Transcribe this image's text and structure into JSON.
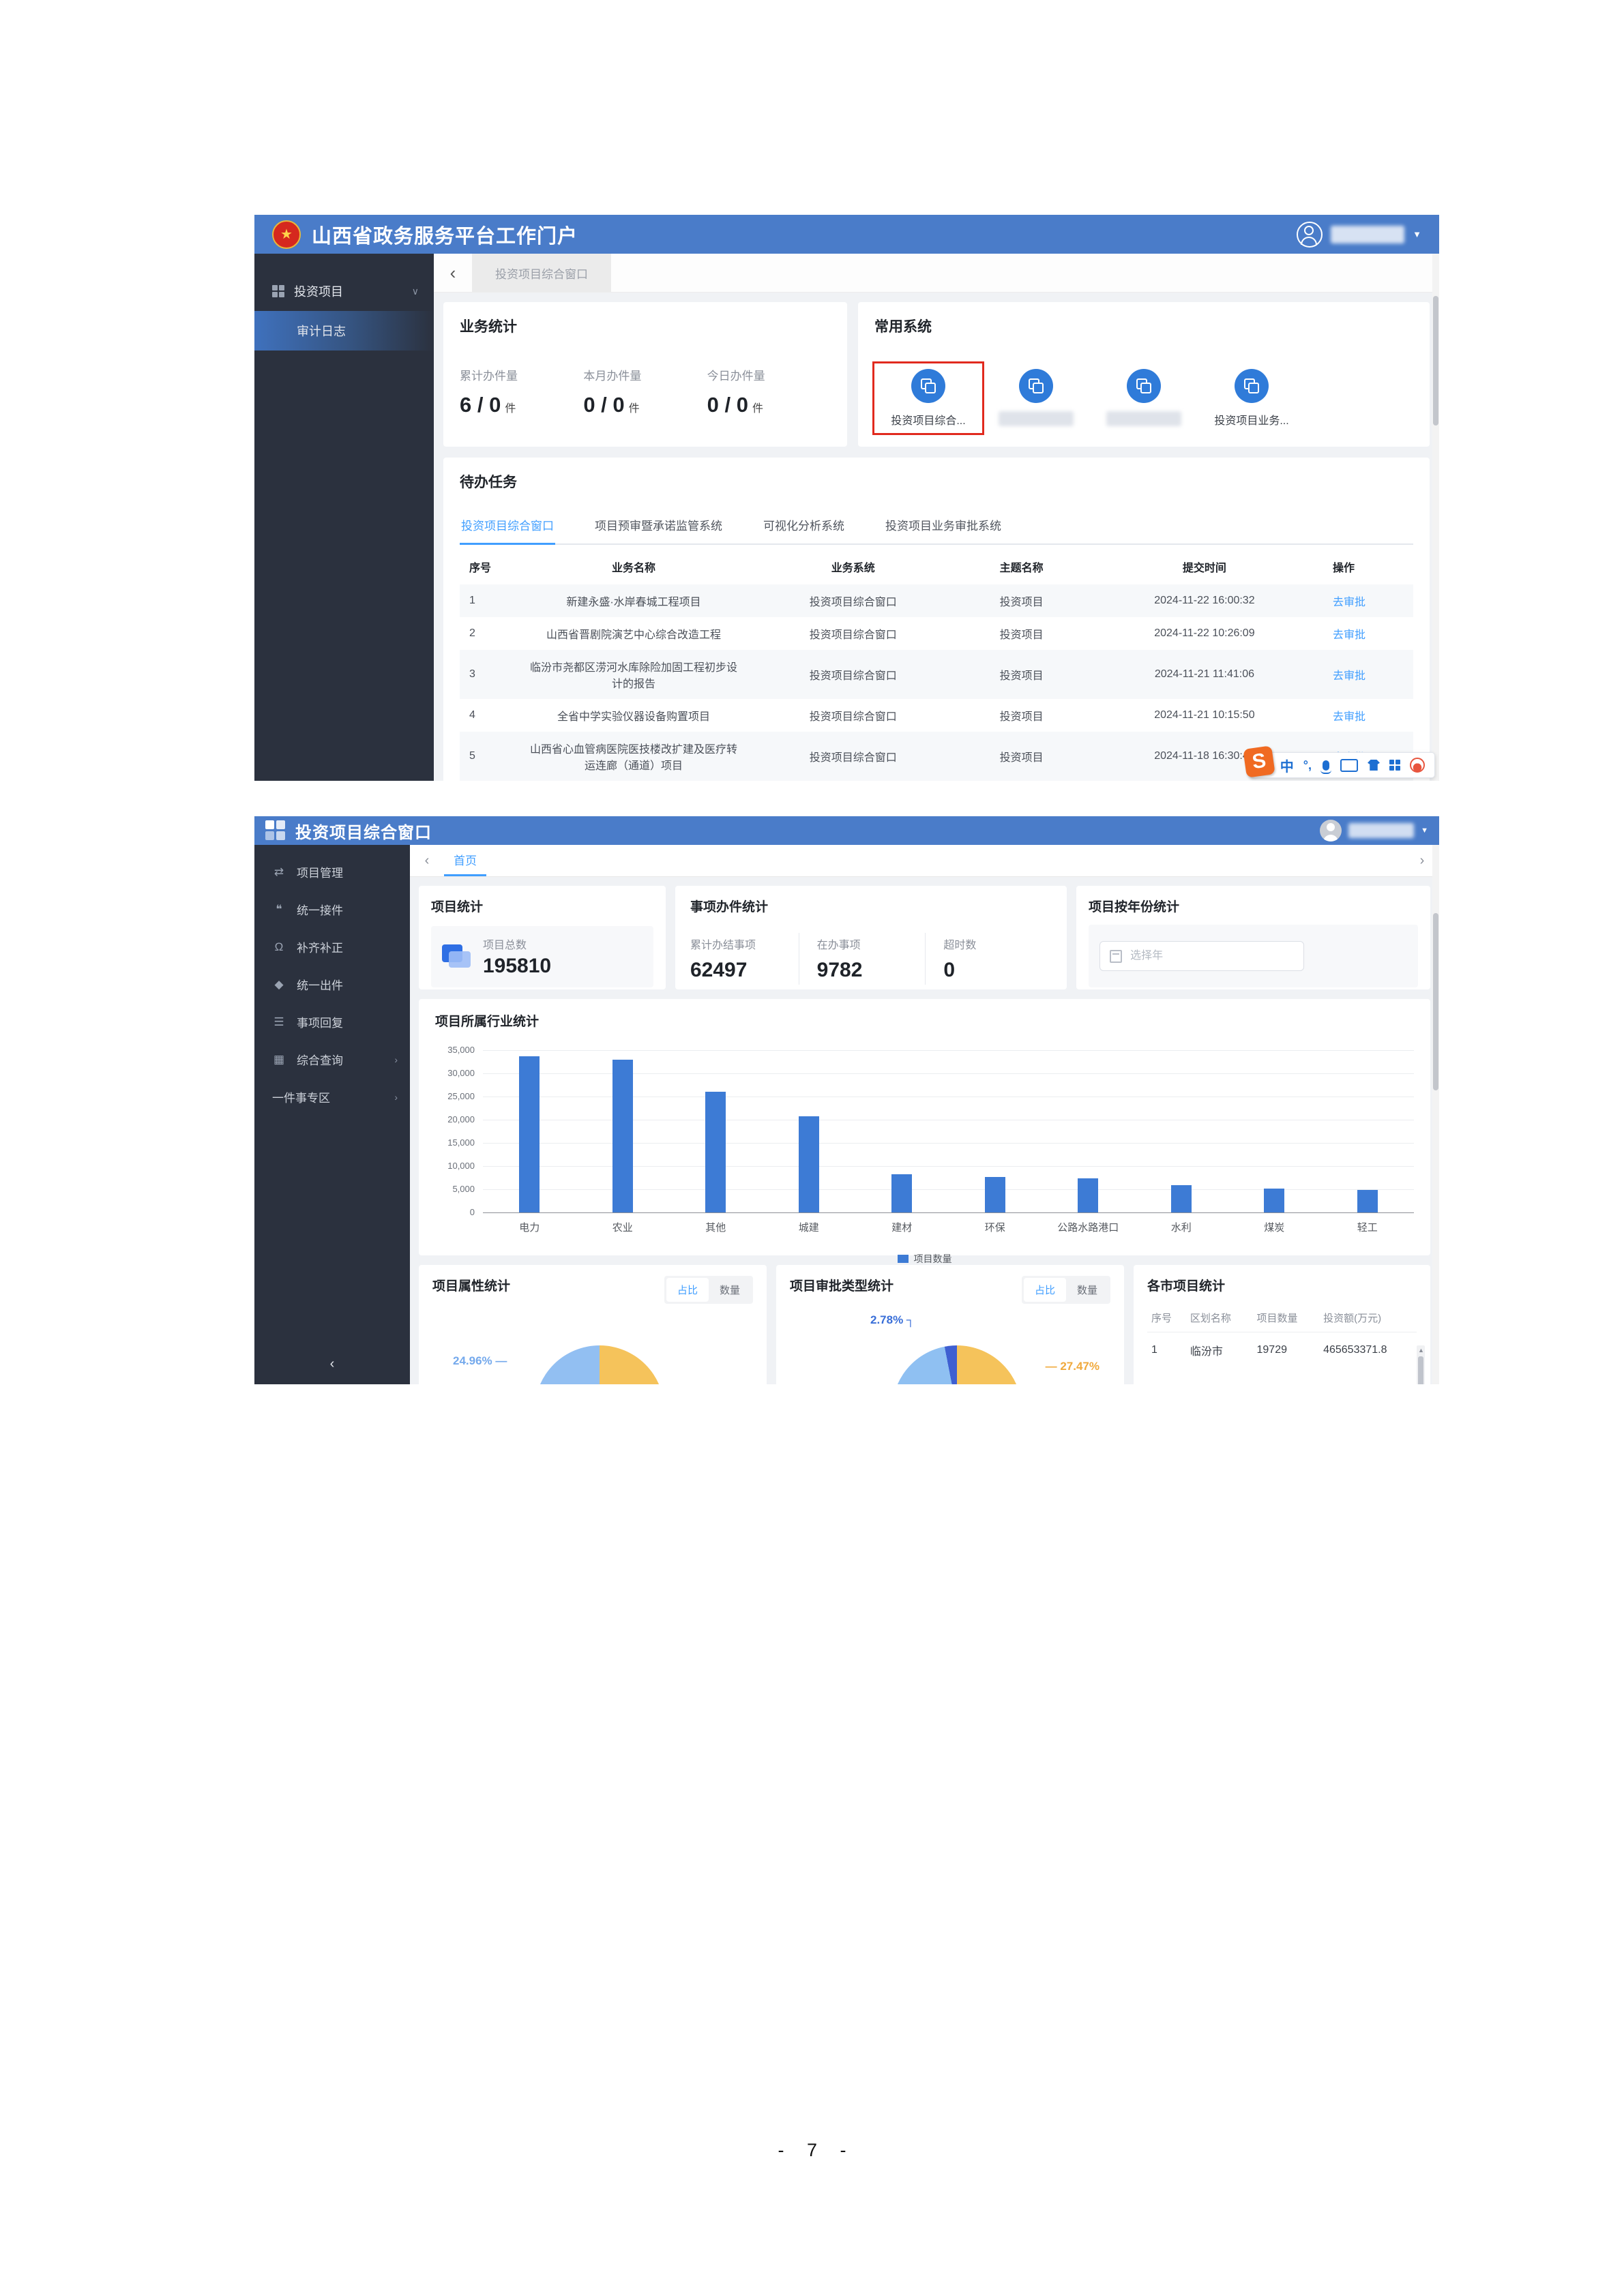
{
  "doc": {
    "page_number": "- 7 -"
  },
  "portal": {
    "header": {
      "title": "山西省政务服务平台工作门户"
    },
    "user": {
      "caret": "▼"
    },
    "tabbar": {
      "back": "‹",
      "tab": "投资项目综合窗口"
    },
    "sidebar": {
      "parent": "投资项目",
      "parent_chevron": "∨",
      "child": "审计日志"
    },
    "business": {
      "title": "业务统计",
      "metrics": [
        {
          "label": "累计办件量",
          "value": "6 / 0",
          "unit": "件"
        },
        {
          "label": "本月办件量",
          "value": "0 / 0",
          "unit": "件"
        },
        {
          "label": "今日办件量",
          "value": "0 / 0",
          "unit": "件"
        }
      ]
    },
    "systems": {
      "title": "常用系统",
      "items": [
        {
          "label": "投资项目综合...",
          "redacted": false,
          "highlighted": true
        },
        {
          "label": "",
          "redacted": true,
          "highlighted": false
        },
        {
          "label": "",
          "redacted": true,
          "highlighted": false
        },
        {
          "label": "投资项目业务...",
          "redacted": false,
          "highlighted": false
        }
      ]
    },
    "todo": {
      "title": "待办任务",
      "tabs": [
        {
          "label": "投资项目综合窗口",
          "active": true
        },
        {
          "label": "项目预审暨承诺监管系统",
          "active": false
        },
        {
          "label": "可视化分析系统",
          "active": false
        },
        {
          "label": "投资项目业务审批系统",
          "active": false
        }
      ],
      "columns": [
        "序号",
        "业务名称",
        "业务系统",
        "主题名称",
        "提交时间",
        "操作"
      ],
      "action_label": "去审批",
      "rows": [
        {
          "no": "1",
          "name": "新建永盛·水岸春城工程项目",
          "system": "投资项目综合窗口",
          "topic": "投资项目",
          "time": "2024-11-22 16:00:32"
        },
        {
          "no": "2",
          "name": "山西省晋剧院演艺中心综合改造工程",
          "system": "投资项目综合窗口",
          "topic": "投资项目",
          "time": "2024-11-22 10:26:09"
        },
        {
          "no": "3",
          "name": "临汾市尧都区涝河水库除险加固工程初步设计的报告",
          "system": "投资项目综合窗口",
          "topic": "投资项目",
          "time": "2024-11-21 11:41:06"
        },
        {
          "no": "4",
          "name": "全省中学实验仪器设备购置项目",
          "system": "投资项目综合窗口",
          "topic": "投资项目",
          "time": "2024-11-21 10:15:50"
        },
        {
          "no": "5",
          "name": "山西省心血管病医院医技楼改扩建及医疗转运连廊（通道）项目",
          "system": "投资项目综合窗口",
          "topic": "投资项目",
          "time": "2024-11-18 16:30:49"
        }
      ]
    },
    "ime": {
      "mode_label": "中",
      "punct_label": "°,"
    }
  },
  "console": {
    "header": {
      "title": "投资项目综合窗口"
    },
    "user": {
      "caret": "▼"
    },
    "tabbar": {
      "back": "‹",
      "tab": "首页",
      "forward": "›"
    },
    "sidebar": {
      "items": [
        {
          "label": "项目管理",
          "icon": "swap-icon",
          "glyph": "⇄",
          "arrow": false
        },
        {
          "label": "统一接件",
          "icon": "chat-icon",
          "glyph": "❝",
          "arrow": false
        },
        {
          "label": "补齐补正",
          "icon": "headset-icon",
          "glyph": "Ω",
          "arrow": false
        },
        {
          "label": "统一出件",
          "icon": "tag-icon",
          "glyph": "◆",
          "arrow": false
        },
        {
          "label": "事项回复",
          "icon": "server-icon",
          "glyph": "☰",
          "arrow": false
        },
        {
          "label": "综合查询",
          "icon": "table-icon",
          "glyph": "▦",
          "arrow": true
        },
        {
          "label": "一件事专区",
          "icon": "",
          "glyph": "",
          "arrow": true
        }
      ],
      "collapse": "‹"
    },
    "project_stats": {
      "title": "项目统计",
      "label": "项目总数",
      "value": "195810"
    },
    "matter_stats": {
      "title": "事项办件统计",
      "metrics": [
        {
          "label": "累计办结事项",
          "value": "62497"
        },
        {
          "label": "在办事项",
          "value": "9782"
        },
        {
          "label": "超时数",
          "value": "0"
        }
      ]
    },
    "year_stats": {
      "title": "项目按年份统计",
      "placeholder": "选择年"
    },
    "industry": {
      "title": "项目所属行业统计",
      "legend": "项目数量"
    },
    "attribute": {
      "title": "项目属性统计",
      "toggle": [
        "占比",
        "数量"
      ],
      "active_toggle": "占比",
      "slice_label": "24.96% —"
    },
    "approval": {
      "title": "项目审批类型统计",
      "toggle": [
        "占比",
        "数量"
      ],
      "active_toggle": "占比",
      "slice_label_blue": "2.78% ┐",
      "slice_label_orange": "— 27.47%"
    },
    "city": {
      "title": "各市项目统计",
      "columns": [
        "序号",
        "区划名称",
        "项目数量",
        "投资额(万元)"
      ],
      "rows": [
        {
          "no": "1",
          "name": "临汾市",
          "count": "19729",
          "amount": "465653371.8"
        }
      ]
    }
  },
  "chart_data": {
    "type": "bar",
    "title": "项目所属行业统计",
    "categories": [
      "电力",
      "农业",
      "其他",
      "城建",
      "建材",
      "环保",
      "公路水路港口",
      "水利",
      "煤炭",
      "轻工"
    ],
    "values": [
      33700,
      32900,
      26100,
      20700,
      8200,
      7600,
      7300,
      5900,
      5100,
      4900
    ],
    "series": [
      {
        "name": "项目数量",
        "values": [
          33700,
          32900,
          26100,
          20700,
          8200,
          7600,
          7300,
          5900,
          5100,
          4900
        ]
      }
    ],
    "xlabel": "",
    "ylabel": "",
    "ylim": [
      0,
      35000
    ],
    "ytick_labels": [
      "35,000",
      "30,000",
      "25,000",
      "20,000",
      "15,000",
      "10,000",
      "5,000",
      "0"
    ],
    "legend": [
      "项目数量"
    ],
    "legend_position": "bottom",
    "grid": true,
    "bar_color": "#3d7bd5"
  }
}
